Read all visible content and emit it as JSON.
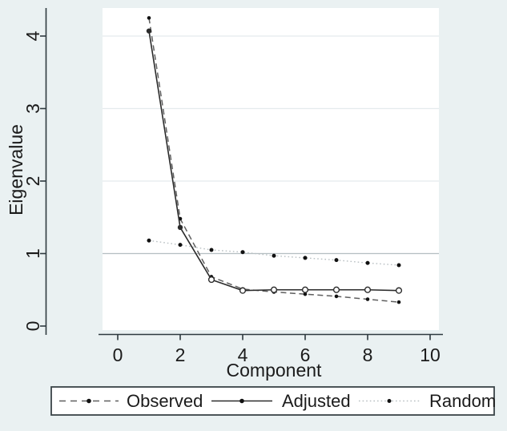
{
  "colors": {
    "background": "#eaf1f2",
    "plot_bg": "#ffffff",
    "grid": "#e4ebed",
    "reference_line": "#b6bfc2",
    "axis": "#2e3a3f",
    "text": "#1b1b1b",
    "observed_line": "#5f5f5f",
    "adjusted_line": "#2b2b2b",
    "random_line": "#b9c0c3",
    "marker_fill": "#111111",
    "legend_bg": "#ffffff",
    "legend_border": "#3a4448"
  },
  "chart_data": {
    "type": "line",
    "title": "",
    "xlabel": "Component",
    "ylabel": "Eigenvalue",
    "x": [
      1,
      2,
      3,
      4,
      5,
      6,
      7,
      8,
      9
    ],
    "series": [
      {
        "name": "Observed",
        "line_style": "dashed",
        "marker": "small-filled-dot",
        "values": [
          4.25,
          1.48,
          0.68,
          0.51,
          0.47,
          0.44,
          0.41,
          0.37,
          0.33
        ]
      },
      {
        "name": "Adjusted",
        "line_style": "solid",
        "marker": "filled-dot-first-2-then-open-circle",
        "values": [
          4.07,
          1.36,
          0.64,
          0.49,
          0.5,
          0.5,
          0.5,
          0.5,
          0.49
        ]
      },
      {
        "name": "Random",
        "line_style": "dotted",
        "marker": "small-filled-dot",
        "values": [
          1.18,
          1.12,
          1.05,
          1.02,
          0.97,
          0.94,
          0.91,
          0.87,
          0.84
        ]
      }
    ],
    "xticks": [
      "0",
      "2",
      "4",
      "6",
      "8",
      "10"
    ],
    "yticks": [
      "0",
      "1",
      "2",
      "3",
      "4"
    ],
    "xlim": [
      -0.6,
      10.4
    ],
    "ylim": [
      -0.11,
      4.44
    ],
    "reference_line_y": 1,
    "grid": "horizontal-only",
    "legend_position": "bottom"
  }
}
